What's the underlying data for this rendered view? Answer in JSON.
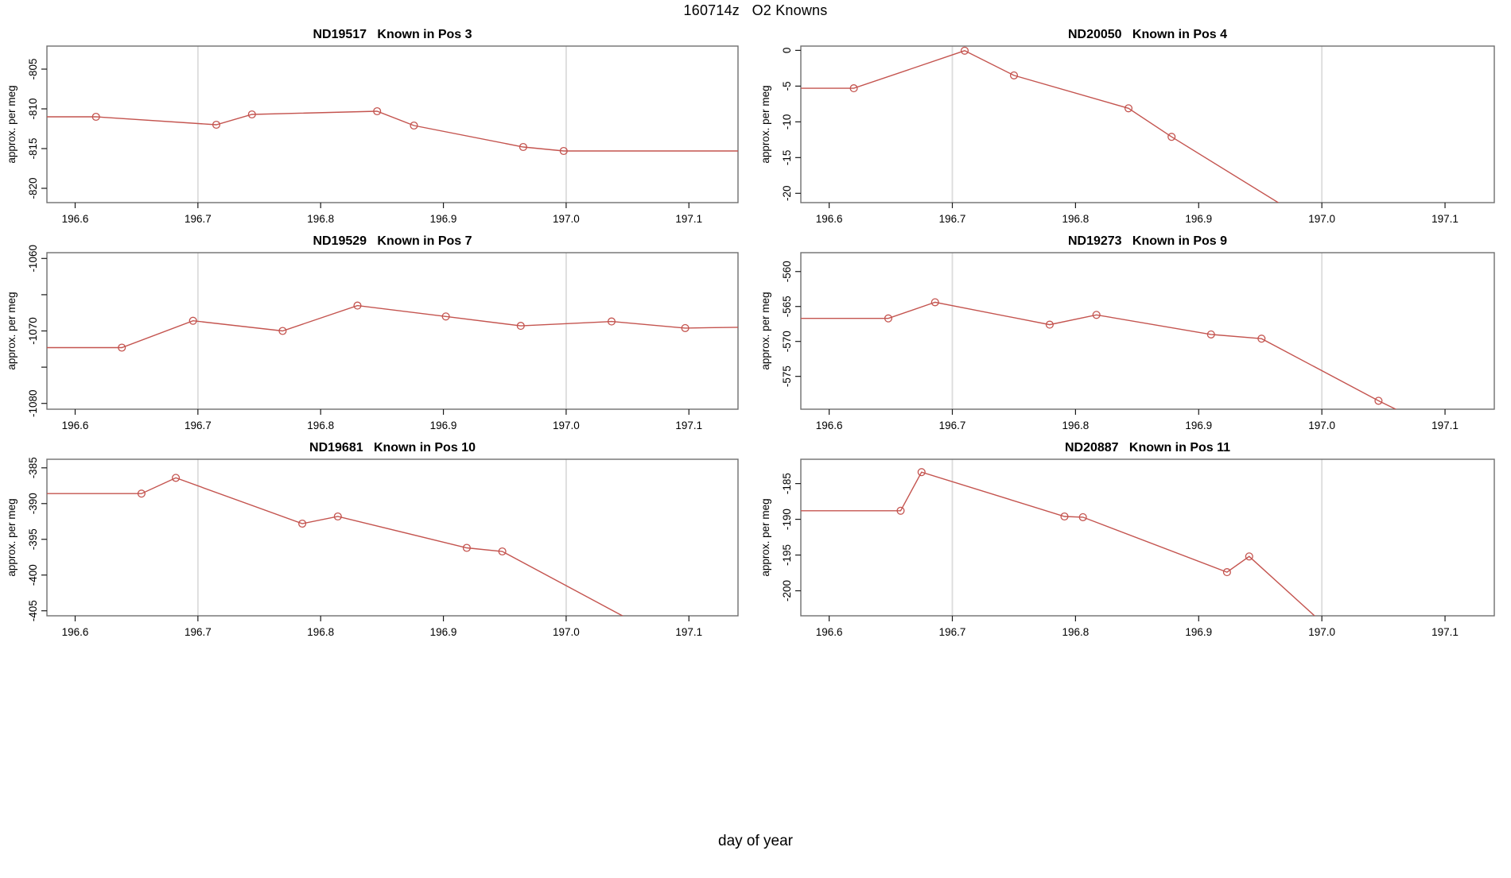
{
  "header": {
    "title": "160714z   O2 Knowns"
  },
  "footer": {
    "xlabel": "day of year"
  },
  "chart_data": {
    "type": "line",
    "figure_title": "160714z   O2 Knowns",
    "xlabel": "day of year",
    "ylabel": "approx. per meg",
    "xlim": [
      196.577,
      197.14
    ],
    "x_ticks": [
      196.6,
      196.7,
      196.8,
      196.9,
      197.0,
      197.1
    ],
    "x_tick_labels": [
      "196.6",
      "196.7",
      "196.8",
      "196.9",
      "197.0",
      "197.1"
    ],
    "grid_x": [
      196.7,
      197.0
    ],
    "grid_on": "vertical reference lines only",
    "legend": "none",
    "colors": {
      "line": "#c4544f",
      "marker": "#c4544f",
      "grid": "#dcdcdc",
      "box": "#6f6f6f",
      "tick": "#1a1a1a",
      "text": "#000000"
    },
    "subplots": [
      {
        "unit": "ND19517",
        "position": "Known in Pos 3",
        "title": "ND19517   Known in Pos 3",
        "row": 0,
        "col": 0,
        "ylim": [
          -821.8,
          -802.1
        ],
        "y_ticks": [
          -805,
          -810,
          -815,
          -820
        ],
        "y_tick_labels": [
          "-805",
          "-810",
          "-815",
          "-820"
        ],
        "points": [
          [
            196.577,
            -811.0,
            0
          ],
          [
            196.617,
            -811.0,
            1
          ],
          [
            196.715,
            -812.0,
            1
          ],
          [
            196.744,
            -810.7,
            1
          ],
          [
            196.846,
            -810.3,
            1
          ],
          [
            196.876,
            -812.1,
            1
          ],
          [
            196.965,
            -814.8,
            1
          ],
          [
            196.998,
            -815.3,
            1
          ],
          [
            197.14,
            -815.3,
            0
          ]
        ]
      },
      {
        "unit": "ND20050",
        "position": "Known in Pos 4",
        "title": "ND20050   Known in Pos 4",
        "row": 0,
        "col": 1,
        "ylim": [
          -21.3,
          0.6
        ],
        "y_ticks": [
          0,
          -5,
          -10,
          -15,
          -20
        ],
        "y_tick_labels": [
          "0",
          "-5",
          "-10",
          "-15",
          "-20"
        ],
        "points": [
          [
            196.577,
            -5.3,
            0
          ],
          [
            196.62,
            -5.3,
            1
          ],
          [
            196.71,
            -0.05,
            1
          ],
          [
            196.75,
            -3.5,
            1
          ],
          [
            196.843,
            -8.1,
            1
          ],
          [
            196.878,
            -12.1,
            1
          ],
          [
            196.99,
            -24.0,
            0
          ]
        ]
      },
      {
        "unit": "ND19529",
        "position": "Known in Pos 7",
        "title": "ND19529   Known in Pos 7",
        "row": 1,
        "col": 0,
        "ylim": [
          -1080.8,
          -1059.2
        ],
        "y_ticks": [
          -1060,
          -1065,
          -1070,
          -1075,
          -1080
        ],
        "y_tick_labels": [
          "-1060",
          "",
          "-1070",
          "",
          "-1080"
        ],
        "points": [
          [
            196.577,
            -1072.3,
            0
          ],
          [
            196.638,
            -1072.3,
            1
          ],
          [
            196.696,
            -1068.6,
            1
          ],
          [
            196.769,
            -1070.0,
            1
          ],
          [
            196.83,
            -1066.5,
            1
          ],
          [
            196.902,
            -1068.0,
            1
          ],
          [
            196.963,
            -1069.3,
            1
          ],
          [
            197.037,
            -1068.7,
            1
          ],
          [
            197.097,
            -1069.6,
            1
          ],
          [
            197.14,
            -1069.5,
            0
          ]
        ]
      },
      {
        "unit": "ND19273",
        "position": "Known in Pos 9",
        "title": "ND19273   Known in Pos 9",
        "row": 1,
        "col": 1,
        "ylim": [
          -579.7,
          -557.3
        ],
        "y_ticks": [
          -560,
          -565,
          -570,
          -575
        ],
        "y_tick_labels": [
          "-560",
          "-565",
          "-570",
          "-575"
        ],
        "points": [
          [
            196.577,
            -566.7,
            0
          ],
          [
            196.648,
            -566.7,
            1
          ],
          [
            196.686,
            -564.4,
            1
          ],
          [
            196.779,
            -567.6,
            1
          ],
          [
            196.817,
            -566.2,
            1
          ],
          [
            196.91,
            -569.0,
            1
          ],
          [
            196.951,
            -569.6,
            1
          ],
          [
            197.046,
            -578.5,
            1
          ],
          [
            197.075,
            -581.0,
            0
          ]
        ]
      },
      {
        "unit": "ND19681",
        "position": "Known in Pos 10",
        "title": "ND19681   Known in Pos 10",
        "row": 2,
        "col": 0,
        "ylim": [
          -405.7,
          -383.8
        ],
        "y_ticks": [
          -385,
          -390,
          -395,
          -400,
          -405
        ],
        "y_tick_labels": [
          "-385",
          "-390",
          "-395",
          "-400",
          "-405"
        ],
        "points": [
          [
            196.577,
            -388.6,
            0
          ],
          [
            196.654,
            -388.6,
            1
          ],
          [
            196.682,
            -386.4,
            1
          ],
          [
            196.785,
            -392.8,
            1
          ],
          [
            196.814,
            -391.8,
            1
          ],
          [
            196.919,
            -396.2,
            1
          ],
          [
            196.948,
            -396.7,
            1
          ],
          [
            197.06,
            -407.0,
            0
          ]
        ]
      },
      {
        "unit": "ND20887",
        "position": "Known in Pos 11",
        "title": "ND20887   Known in Pos 11",
        "row": 2,
        "col": 1,
        "ylim": [
          -203.5,
          -181.6
        ],
        "y_ticks": [
          -185,
          -190,
          -195,
          -200
        ],
        "y_tick_labels": [
          "-185",
          "-190",
          "-195",
          "-200"
        ],
        "points": [
          [
            196.577,
            -188.8,
            0
          ],
          [
            196.658,
            -188.8,
            1
          ],
          [
            196.675,
            -183.4,
            1
          ],
          [
            196.791,
            -189.6,
            1
          ],
          [
            196.806,
            -189.7,
            1
          ],
          [
            196.923,
            -197.4,
            1
          ],
          [
            196.941,
            -195.2,
            1
          ],
          [
            197.01,
            -206.0,
            0
          ]
        ]
      }
    ]
  }
}
